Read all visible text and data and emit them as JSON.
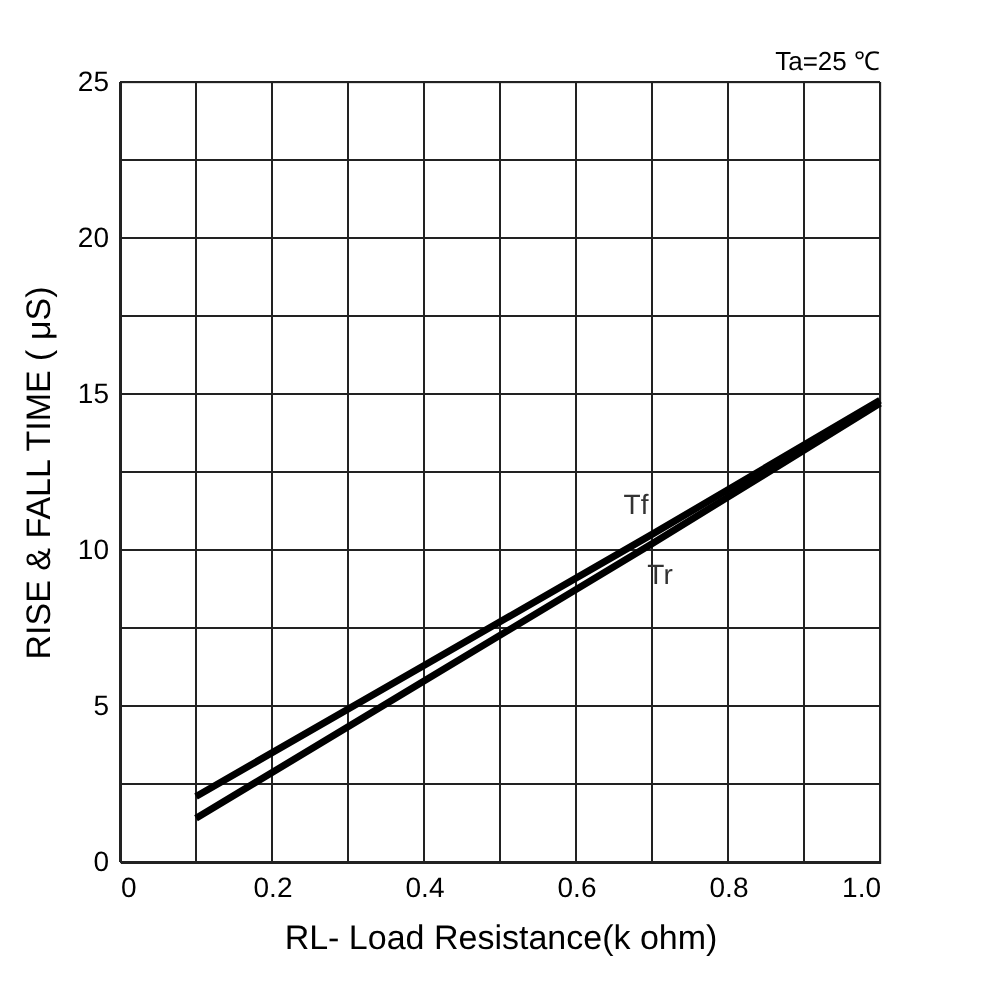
{
  "chart_data": {
    "type": "line",
    "xlabel": "RL- Load Resistance(k ohm)",
    "ylabel": "RISE & FALL TIME ( μS)",
    "annotations": [
      "Ta=25 ℃"
    ],
    "x": [
      0.1,
      0.4,
      0.7,
      1.0
    ],
    "series": [
      {
        "name": "Tf",
        "color": "#000000",
        "values": [
          2.1,
          6.3,
          10.5,
          14.8
        ]
      },
      {
        "name": "Tr",
        "color": "#000000",
        "values": [
          1.4,
          5.8,
          10.2,
          14.7
        ]
      }
    ],
    "xlim": [
      0,
      1
    ],
    "ylim": [
      0,
      25
    ],
    "xticks": [
      0,
      {
        "value": 0.1,
        "label": null
      },
      0.2,
      {
        "value": 0.3,
        "label": null
      },
      0.4,
      {
        "value": 0.5,
        "label": null
      },
      0.6,
      {
        "value": 0.7,
        "label": null
      },
      0.8,
      {
        "value": 0.9,
        "label": null
      },
      {
        "value": 1,
        "label": "1.0"
      }
    ],
    "yticks": [
      0,
      {
        "value": 2.5,
        "label": null
      },
      5,
      {
        "value": 7.5,
        "label": null
      },
      10,
      {
        "value": 12.5,
        "label": null
      },
      15,
      {
        "value": 17.5,
        "label": null
      },
      20,
      {
        "value": 22.5,
        "label": null
      },
      25
    ],
    "grid": true,
    "legend": false,
    "marker": "none",
    "line_style": "solid"
  }
}
